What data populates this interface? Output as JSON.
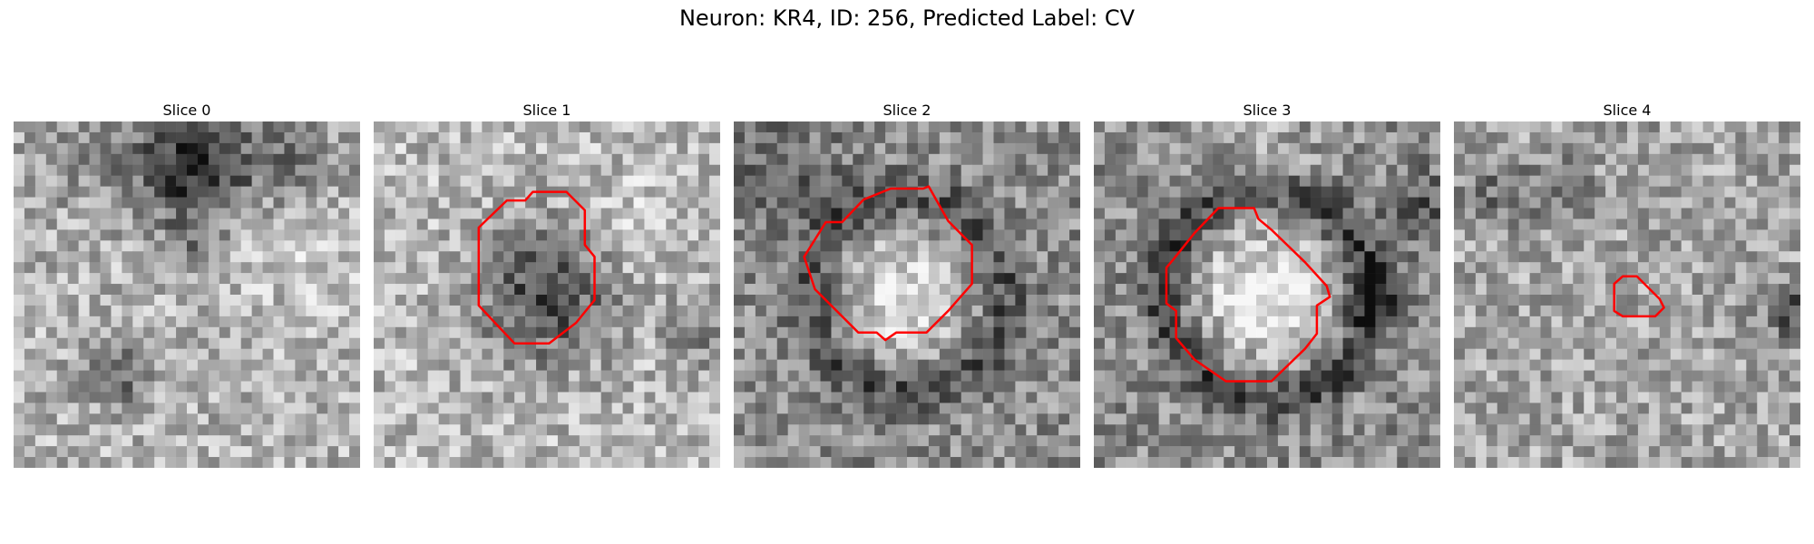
{
  "figure": {
    "title": "Neuron: KR4, ID: 256, Predicted Label: CV"
  },
  "colors": {
    "background": "#ffffff",
    "contour": "#ff0000"
  },
  "panels": [
    {
      "label": "Slice 0",
      "pattern": "dark-band-top",
      "seed": 11,
      "contour": "none"
    },
    {
      "label": "Slice 1",
      "pattern": "dark-vesicle",
      "seed": 23,
      "contour": "large-octagon"
    },
    {
      "label": "Slice 2",
      "pattern": "bright-vesicle",
      "seed": 37,
      "contour": "large-octagon-tip"
    },
    {
      "label": "Slice 3",
      "pattern": "bright-vesicle-strong",
      "seed": 41,
      "contour": "large-octagon-right"
    },
    {
      "label": "Slice 4",
      "pattern": "noise-dark-edges",
      "seed": 59,
      "contour": "small-blob"
    }
  ]
}
